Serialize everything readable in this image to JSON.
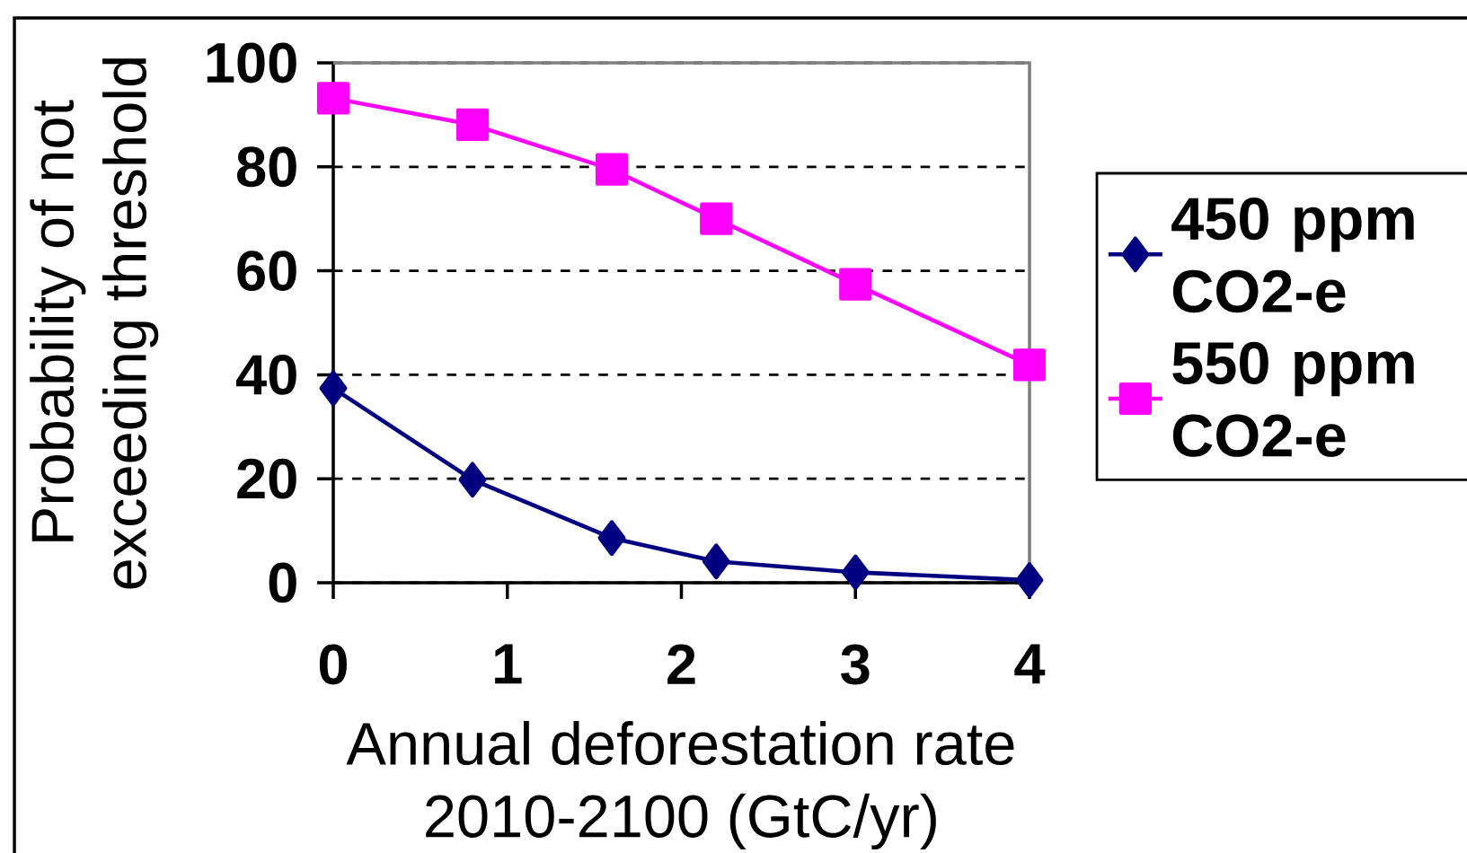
{
  "chart_data": {
    "type": "line",
    "xlabel": "Annual deforestation rate\n2010-2100 (GtC/yr)",
    "ylabel": "Probability of not\nexceeding threshold",
    "x": [
      0,
      0.8,
      1.6,
      2.2,
      3,
      4
    ],
    "series": [
      {
        "name": "450 ppm CO2-e",
        "color": "#000080",
        "marker": "diamond",
        "values": [
          37.4,
          19.8,
          8.6,
          4.1,
          2.0,
          0.5
        ]
      },
      {
        "name": "550 ppm CO2-e",
        "color": "#ff00ff",
        "marker": "square",
        "values": [
          93.2,
          88.1,
          79.5,
          70,
          57.4,
          41.9
        ]
      }
    ],
    "xlim": [
      0,
      4
    ],
    "xticks": [
      0,
      1,
      2,
      3,
      4
    ],
    "ylim": [
      0,
      100
    ],
    "yticks": [
      0,
      20,
      40,
      60,
      80,
      100
    ],
    "grid": "y",
    "legend": "right"
  }
}
